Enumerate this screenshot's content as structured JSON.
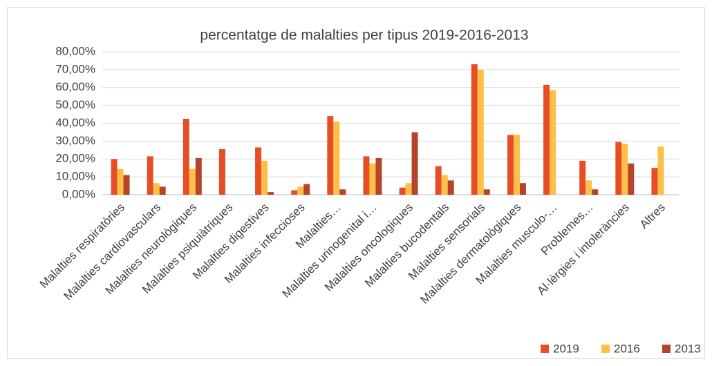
{
  "chart_data": {
    "type": "bar",
    "title": "percentatge de malalties per tipus 2019-2016-2013",
    "categories": [
      "Malalties respiratòries",
      "Malalties cardiovasculars",
      "Malalties neurològiques",
      "Malalties psiquiàtriques",
      "Malalties  digestives",
      "Malalties infeccioses",
      "Malalties…",
      "Malalties urinogenital i…",
      "Malalties oncologiques",
      "Malalties bucodentals",
      "Malalties sensorials",
      "Malalties dermatològiques",
      "Malalties musculo-…",
      "Problemes…",
      "Al·lèrgies i intoleràncies",
      "Altres"
    ],
    "series": [
      {
        "name": "2019",
        "color": "#e84e25",
        "values": [
          20,
          21.5,
          42.5,
          25.5,
          26.5,
          2.5,
          44,
          21.5,
          4,
          16,
          73,
          33.5,
          61.5,
          19,
          29.5,
          15
        ]
      },
      {
        "name": "2016",
        "color": "#fdbf47",
        "values": [
          14.5,
          6.5,
          14.5,
          0,
          19,
          4.5,
          41,
          17.5,
          6.5,
          11,
          70,
          33.5,
          58.5,
          8,
          28.5,
          27
        ]
      },
      {
        "name": "2013",
        "color": "#b4442a",
        "values": [
          11,
          4.5,
          20.5,
          0,
          1.5,
          6,
          3,
          20.5,
          35,
          8,
          3,
          6.5,
          0,
          3,
          17.5,
          0
        ]
      }
    ],
    "ylim": [
      0,
      80
    ],
    "yticks": [
      {
        "value": 0,
        "label": "0,00%"
      },
      {
        "value": 10,
        "label": "10,00%"
      },
      {
        "value": 20,
        "label": "20,00%"
      },
      {
        "value": 30,
        "label": "30,00%"
      },
      {
        "value": 40,
        "label": "40,00%"
      },
      {
        "value": 50,
        "label": "50,00%"
      },
      {
        "value": 60,
        "label": "60,00%"
      },
      {
        "value": 70,
        "label": "70,00%"
      },
      {
        "value": 80,
        "label": "80,00%"
      }
    ],
    "grid": true,
    "legend": "bottom-right"
  }
}
